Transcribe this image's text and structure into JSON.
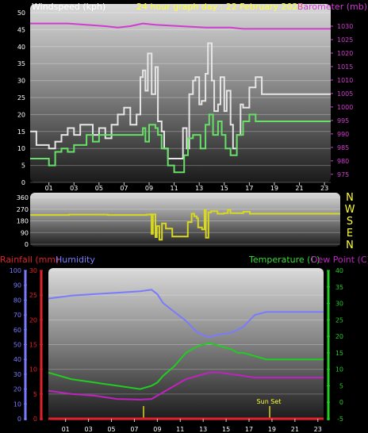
{
  "header_title": "24 hour graph day : 22 February 2026",
  "colors": {
    "windspeed": "#e6e6e6",
    "gust": "#66e066",
    "barometer": "#d03cd0",
    "direction": "#d8d820",
    "rainfall": "#e0202a",
    "humidity": "#7a7aff",
    "temperature": "#22cc22",
    "dewpoint": "#c022c0",
    "title_yellow": "#ffff33",
    "title_white": "#ffffff",
    "title_green": "#33dd33"
  },
  "hour_ticks": [
    "01",
    "03",
    "05",
    "07",
    "09",
    "11",
    "13",
    "15",
    "17",
    "19",
    "21",
    "23"
  ],
  "chart_data": [
    {
      "type": "line",
      "labels": {
        "left": "Windspeed (kph)",
        "right": "Barometer (mb)"
      },
      "x_range": [
        0,
        24
      ],
      "y_left": {
        "range": [
          0,
          50
        ],
        "ticks": [
          0,
          5,
          10,
          15,
          20,
          25,
          30,
          35,
          40,
          45,
          50
        ]
      },
      "y_right": {
        "range": [
          972,
          1035
        ],
        "ticks": [
          975,
          980,
          985,
          990,
          995,
          1000,
          1005,
          1010,
          1015,
          1020,
          1025,
          1030
        ]
      },
      "series": [
        {
          "key": "windspeed",
          "axis": "left",
          "color": "#e6e6e6",
          "step": true,
          "points": [
            [
              0,
              15
            ],
            [
              0.5,
              11
            ],
            [
              1,
              11
            ],
            [
              1.5,
              10
            ],
            [
              2,
              12
            ],
            [
              2.5,
              14
            ],
            [
              3,
              16
            ],
            [
              3.5,
              14
            ],
            [
              4,
              17
            ],
            [
              5,
              14
            ],
            [
              5.5,
              16
            ],
            [
              6,
              13
            ],
            [
              6.5,
              17
            ],
            [
              7,
              20
            ],
            [
              7.5,
              22
            ],
            [
              8,
              17
            ],
            [
              8.5,
              20
            ],
            [
              8.8,
              31
            ],
            [
              9,
              33
            ],
            [
              9.2,
              27
            ],
            [
              9.4,
              38
            ],
            [
              9.7,
              26
            ],
            [
              10,
              34
            ],
            [
              10.2,
              18
            ],
            [
              10.5,
              15
            ],
            [
              10.7,
              10
            ],
            [
              11,
              7
            ],
            [
              11.5,
              7
            ],
            [
              12,
              7
            ],
            [
              12.2,
              16
            ],
            [
              12.5,
              10
            ],
            [
              12.7,
              26
            ],
            [
              13,
              30
            ],
            [
              13.2,
              31
            ],
            [
              13.5,
              23
            ],
            [
              13.7,
              24
            ],
            [
              14,
              32
            ],
            [
              14.2,
              41
            ],
            [
              14.5,
              30
            ],
            [
              14.7,
              21
            ],
            [
              15,
              23
            ],
            [
              15.2,
              31
            ],
            [
              15.5,
              21
            ],
            [
              15.7,
              27
            ],
            [
              16,
              17
            ],
            [
              16.2,
              10
            ],
            [
              16.5,
              14
            ],
            [
              16.8,
              23
            ],
            [
              17,
              22
            ],
            [
              17.5,
              28
            ],
            [
              18,
              31
            ],
            [
              18.5,
              26
            ],
            [
              24,
              26
            ]
          ]
        },
        {
          "key": "gust",
          "axis": "left",
          "color": "#66e066",
          "step": true,
          "points": [
            [
              0,
              7
            ],
            [
              1,
              7
            ],
            [
              1.5,
              5
            ],
            [
              2,
              9
            ],
            [
              2.5,
              10
            ],
            [
              3,
              9
            ],
            [
              3.5,
              11
            ],
            [
              4,
              11
            ],
            [
              4.5,
              14
            ],
            [
              5,
              12
            ],
            [
              5.5,
              14
            ],
            [
              6,
              14
            ],
            [
              6.5,
              14
            ],
            [
              7,
              14
            ],
            [
              8,
              14
            ],
            [
              8.6,
              14
            ],
            [
              9,
              16
            ],
            [
              9.2,
              12
            ],
            [
              9.5,
              17
            ],
            [
              10,
              16
            ],
            [
              10.2,
              14
            ],
            [
              10.5,
              10
            ],
            [
              11,
              5
            ],
            [
              11.5,
              3
            ],
            [
              12,
              3
            ],
            [
              12.3,
              8
            ],
            [
              12.6,
              13
            ],
            [
              13,
              14
            ],
            [
              13.3,
              14
            ],
            [
              13.6,
              10
            ],
            [
              14,
              17
            ],
            [
              14.3,
              20
            ],
            [
              14.6,
              14
            ],
            [
              15,
              18
            ],
            [
              15.3,
              14
            ],
            [
              15.6,
              10
            ],
            [
              16,
              8
            ],
            [
              16.5,
              14
            ],
            [
              17,
              18
            ],
            [
              17.5,
              20
            ],
            [
              18,
              18
            ],
            [
              24,
              18
            ]
          ]
        },
        {
          "key": "barometer",
          "axis": "right",
          "color": "#d03cd0",
          "step": false,
          "points": [
            [
              0,
              1031
            ],
            [
              3,
              1031
            ],
            [
              6,
              1030
            ],
            [
              7,
              1029.5
            ],
            [
              8,
              1030
            ],
            [
              9,
              1031
            ],
            [
              10,
              1030.5
            ],
            [
              12,
              1030
            ],
            [
              14,
              1029.5
            ],
            [
              16,
              1029.5
            ],
            [
              17,
              1029
            ],
            [
              18.5,
              1029
            ],
            [
              24,
              1029
            ]
          ]
        }
      ]
    },
    {
      "type": "line",
      "labels": {
        "right": [
          "N",
          "W",
          "S",
          "E",
          "N"
        ]
      },
      "x_range": [
        0,
        24
      ],
      "y_left": {
        "range": [
          0,
          360
        ],
        "ticks": [
          0,
          90,
          180,
          270,
          360
        ]
      },
      "series": [
        {
          "key": "direction",
          "color": "#d8d820",
          "step": true,
          "points": [
            [
              0,
              225
            ],
            [
              3,
              228
            ],
            [
              6,
              225
            ],
            [
              9,
              228
            ],
            [
              9.3,
              230
            ],
            [
              9.4,
              80
            ],
            [
              9.5,
              230
            ],
            [
              9.7,
              55
            ],
            [
              9.8,
              140
            ],
            [
              10,
              35
            ],
            [
              10.2,
              160
            ],
            [
              10.5,
              120
            ],
            [
              10.8,
              120
            ],
            [
              11,
              60
            ],
            [
              11.5,
              60
            ],
            [
              12,
              60
            ],
            [
              12.2,
              170
            ],
            [
              12.5,
              235
            ],
            [
              12.7,
              215
            ],
            [
              12.9,
              200
            ],
            [
              13,
              130
            ],
            [
              13.3,
              115
            ],
            [
              13.5,
              265
            ],
            [
              13.6,
              50
            ],
            [
              13.8,
              245
            ],
            [
              14,
              255
            ],
            [
              14.5,
              235
            ],
            [
              15,
              240
            ],
            [
              15.3,
              265
            ],
            [
              15.5,
              240
            ],
            [
              16,
              240
            ],
            [
              16.5,
              250
            ],
            [
              17,
              235
            ],
            [
              24,
              235
            ]
          ]
        }
      ]
    },
    {
      "type": "line",
      "labels": {
        "left": [
          "Rainfall (mm)",
          "Humidity"
        ],
        "right": [
          "Temperature (C)",
          "Dew Point (C)"
        ]
      },
      "annotation": "Sun Set",
      "x_range": [
        0,
        24
      ],
      "y_rain": {
        "range": [
          0,
          30
        ],
        "ticks": [
          0,
          5,
          10,
          15,
          20,
          25,
          30
        ]
      },
      "y_hum": {
        "range": [
          0,
          100
        ],
        "ticks": [
          0,
          10,
          20,
          30,
          40,
          50,
          60,
          70,
          80,
          90,
          100
        ]
      },
      "y_temp": {
        "range": [
          -5,
          40
        ],
        "ticks": [
          -5,
          0,
          5,
          10,
          15,
          20,
          25,
          30,
          35,
          40
        ]
      },
      "series": [
        {
          "key": "rainfall",
          "axis": "rain",
          "color": "#e0202a",
          "step": false,
          "points": [
            [
              0,
              0
            ],
            [
              24,
              0
            ]
          ]
        },
        {
          "key": "humidity",
          "axis": "hum",
          "color": "#7a7aff",
          "step": false,
          "points": [
            [
              0,
              81
            ],
            [
              2,
              83
            ],
            [
              4,
              84
            ],
            [
              6,
              85
            ],
            [
              8,
              86
            ],
            [
              9,
              87
            ],
            [
              9.5,
              84
            ],
            [
              10,
              78
            ],
            [
              11,
              72
            ],
            [
              12,
              66
            ],
            [
              13,
              58
            ],
            [
              14,
              55
            ],
            [
              15,
              57
            ],
            [
              16,
              58
            ],
            [
              17,
              62
            ],
            [
              18,
              70
            ],
            [
              19,
              72
            ],
            [
              20,
              72
            ],
            [
              24,
              72
            ]
          ]
        },
        {
          "key": "temperature",
          "axis": "temp",
          "color": "#22cc22",
          "step": false,
          "points": [
            [
              0,
              9
            ],
            [
              1,
              8
            ],
            [
              2,
              7
            ],
            [
              4,
              6
            ],
            [
              6,
              5
            ],
            [
              8,
              4
            ],
            [
              9,
              5
            ],
            [
              9.5,
              6
            ],
            [
              10,
              8
            ],
            [
              11,
              11
            ],
            [
              12,
              15
            ],
            [
              13,
              17
            ],
            [
              14,
              18
            ],
            [
              15,
              17
            ],
            [
              16,
              16
            ],
            [
              16.5,
              15
            ],
            [
              17,
              15
            ],
            [
              18,
              14
            ],
            [
              19,
              13
            ],
            [
              24,
              13
            ]
          ]
        },
        {
          "key": "dewpoint",
          "axis": "temp",
          "color": "#c022c0",
          "step": false,
          "points": [
            [
              0,
              3.5
            ],
            [
              1,
              3
            ],
            [
              2,
              2.5
            ],
            [
              4,
              2
            ],
            [
              6,
              1
            ],
            [
              8,
              0.8
            ],
            [
              9,
              1
            ],
            [
              10,
              3
            ],
            [
              11,
              5
            ],
            [
              12,
              7
            ],
            [
              13,
              8
            ],
            [
              14,
              9
            ],
            [
              15,
              9
            ],
            [
              16,
              8.5
            ],
            [
              17,
              8
            ],
            [
              18,
              7.5
            ],
            [
              24,
              7.5
            ]
          ]
        }
      ]
    }
  ]
}
